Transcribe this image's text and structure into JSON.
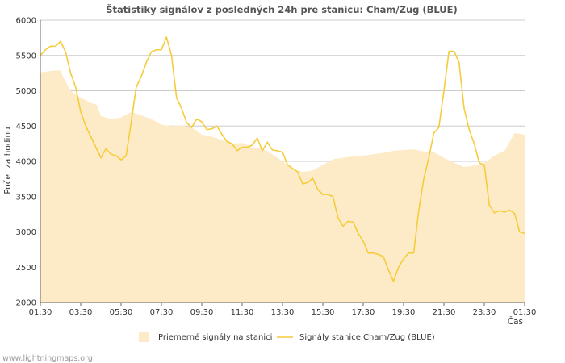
{
  "chart_data": {
    "type": "area",
    "title": "Štatistiky signálov z posledných 24h pre stanicu: Cham/Zug (BLUE)",
    "xlabel": "Čas",
    "ylabel": "Počet za hodinu",
    "ylim": [
      2000,
      6000
    ],
    "yticks": [
      2000,
      2500,
      3000,
      3500,
      4000,
      4500,
      5000,
      5500,
      6000
    ],
    "xlim": [
      0,
      24
    ],
    "xticks": [
      0,
      2,
      4,
      6,
      8,
      10,
      12,
      14,
      16,
      18,
      20,
      22,
      24
    ],
    "xtick_labels": [
      "01:30",
      "03:30",
      "05:30",
      "07:30",
      "09:30",
      "11:30",
      "13:30",
      "15:30",
      "17:30",
      "19:30",
      "21:30",
      "23:30",
      "01:30"
    ],
    "grid": true,
    "series": [
      {
        "name": "Priemerné signály na stanici",
        "kind": "area",
        "color": "#fdebc8",
        "x": [
          0,
          0.5,
          1.0,
          1.1,
          1.5,
          2.0,
          2.5,
          2.8,
          3.0,
          3.5,
          4.0,
          4.5,
          5.0,
          5.5,
          6.0,
          6.5,
          7.0,
          7.5,
          8.0,
          8.5,
          9.0,
          9.5,
          10.0,
          10.5,
          11.0,
          11.5,
          12.0,
          12.5,
          13.0,
          13.5,
          14.0,
          14.5,
          15.0,
          15.5,
          16.0,
          16.5,
          17.0,
          17.5,
          18.0,
          18.5,
          19.0,
          19.5,
          20.0,
          20.5,
          21.0,
          21.5,
          22.0,
          22.5,
          23.0,
          23.5,
          24.0
        ],
        "values": [
          5260,
          5280,
          5290,
          5210,
          5000,
          4900,
          4830,
          4800,
          4640,
          4600,
          4620,
          4700,
          4650,
          4600,
          4520,
          4500,
          4510,
          4480,
          4380,
          4350,
          4300,
          4250,
          4260,
          4200,
          4180,
          4100,
          4000,
          3900,
          3850,
          3870,
          3950,
          4030,
          4050,
          4070,
          4080,
          4100,
          4120,
          4150,
          4160,
          4170,
          4140,
          4130,
          4050,
          3980,
          3920,
          3940,
          3980,
          4080,
          4150,
          4400,
          4380
        ]
      },
      {
        "name": "Signály stanice Cham/Zug (BLUE)",
        "kind": "line",
        "color": "#f5cc3a",
        "x": [
          0,
          0.25,
          0.5,
          0.75,
          1.0,
          1.25,
          1.5,
          1.75,
          2.0,
          2.25,
          2.5,
          2.75,
          3.0,
          3.25,
          3.5,
          3.75,
          4.0,
          4.25,
          4.5,
          4.75,
          5.0,
          5.25,
          5.5,
          5.75,
          6.0,
          6.25,
          6.5,
          6.75,
          7.0,
          7.25,
          7.5,
          7.75,
          8.0,
          8.25,
          8.5,
          8.75,
          9.0,
          9.25,
          9.5,
          9.75,
          10.0,
          10.25,
          10.5,
          10.75,
          11.0,
          11.25,
          11.5,
          11.75,
          12.0,
          12.25,
          12.5,
          12.75,
          13.0,
          13.25,
          13.5,
          13.75,
          14.0,
          14.25,
          14.5,
          14.75,
          15.0,
          15.25,
          15.5,
          15.75,
          16.0,
          16.25,
          16.5,
          16.75,
          17.0,
          17.25,
          17.5,
          17.75,
          18.0,
          18.25,
          18.5,
          18.75,
          19.0,
          19.25,
          19.5,
          19.75,
          20.0,
          20.25,
          20.5,
          20.75,
          21.0,
          21.25,
          21.5,
          21.75,
          22.0,
          22.25,
          22.5,
          22.75,
          23.0,
          23.25,
          23.5,
          23.75,
          24.0
        ],
        "values": [
          5500,
          5580,
          5630,
          5630,
          5700,
          5550,
          5250,
          5050,
          4700,
          4500,
          4350,
          4200,
          4050,
          4180,
          4100,
          4080,
          4020,
          4080,
          4550,
          5050,
          5200,
          5400,
          5550,
          5580,
          5580,
          5760,
          5500,
          4900,
          4750,
          4550,
          4480,
          4600,
          4560,
          4450,
          4460,
          4500,
          4380,
          4280,
          4250,
          4150,
          4200,
          4200,
          4230,
          4330,
          4150,
          4270,
          4160,
          4150,
          4130,
          3950,
          3900,
          3850,
          3680,
          3700,
          3760,
          3600,
          3530,
          3530,
          3500,
          3200,
          3080,
          3150,
          3140,
          2980,
          2870,
          2700,
          2700,
          2680,
          2650,
          2460,
          2300,
          2500,
          2620,
          2700,
          2700,
          3300,
          3750,
          4050,
          4400,
          4480,
          5000,
          5560,
          5560,
          5400,
          4750,
          4450,
          4250,
          3980,
          3950,
          3380,
          3270,
          3300,
          3280,
          3310,
          3260,
          3000,
          2980
        ]
      }
    ],
    "legend_position": "bottom"
  },
  "footer": "www.lightningmaps.org"
}
